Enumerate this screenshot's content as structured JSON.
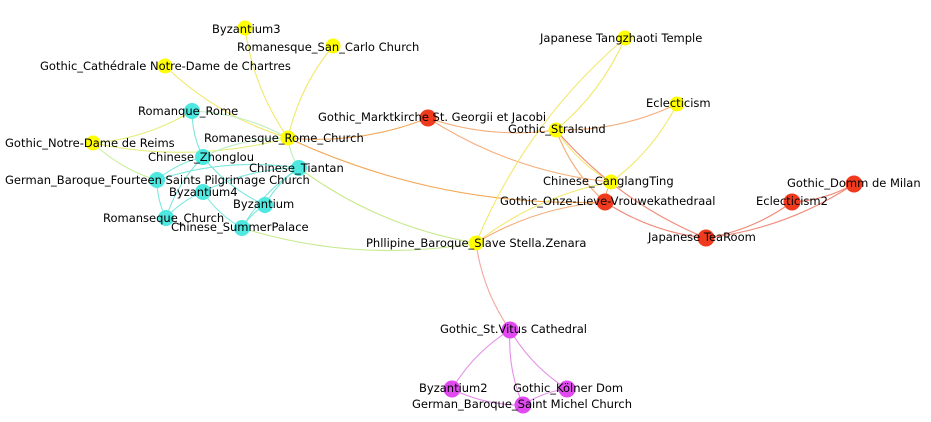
{
  "graph": {
    "colors": {
      "yellow": "#ffff00",
      "cyan": "#4de8e0",
      "red": "#f03a1e",
      "magenta": "#e14af0"
    },
    "nodes": [
      {
        "id": "byzantium3",
        "label": "Byzantium3",
        "group": "yellow"
      },
      {
        "id": "romanesque_san_carlo",
        "label": "Romanesque_San_Carlo Church",
        "group": "yellow"
      },
      {
        "id": "gothic_chartres",
        "label": "Gothic_Cathédrale Notre-Dame de Chartres",
        "group": "yellow"
      },
      {
        "id": "romanque_rome",
        "label": "Romanque_Rome",
        "group": "cyan"
      },
      {
        "id": "gothic_reims",
        "label": "Gothic_Notre-Dame de Reims",
        "group": "yellow"
      },
      {
        "id": "romanesque_rome_church",
        "label": "Romanesque_Rome_Church",
        "group": "yellow"
      },
      {
        "id": "chinese_zhonglou",
        "label": "Chinese_Zhonglou",
        "group": "cyan"
      },
      {
        "id": "chinese_tiantan",
        "label": "Chinese_Tiantan",
        "group": "cyan"
      },
      {
        "id": "german_baroque_fourteen",
        "label": "German_Baroque_Fourteen Saints Pilgrimage Church",
        "group": "cyan"
      },
      {
        "id": "byzantium4",
        "label": "Byzantium4",
        "group": "cyan"
      },
      {
        "id": "byzantium",
        "label": "Byzantium",
        "group": "cyan"
      },
      {
        "id": "romanseque_church",
        "label": "Romanseque_Church",
        "group": "cyan"
      },
      {
        "id": "chinese_summerpalace",
        "label": "Chinese_SummerPalace",
        "group": "cyan"
      },
      {
        "id": "gothic_marktkirche",
        "label": "Gothic_Marktkirche St. Georgii et Jacobi",
        "group": "red"
      },
      {
        "id": "japanese_tangzhaoti",
        "label": "Japanese Tangzhaoti Temple",
        "group": "yellow"
      },
      {
        "id": "eclecticism",
        "label": "Eclecticism",
        "group": "yellow"
      },
      {
        "id": "gothic_stralsund",
        "label": "Gothic_Stralsund",
        "group": "yellow"
      },
      {
        "id": "chinese_canglangting",
        "label": "Chinese_CanglangTing",
        "group": "yellow"
      },
      {
        "id": "gothic_onze_lieve",
        "label": "Gothic_Onze-Lieve-Vrouwekathedraal",
        "group": "red"
      },
      {
        "id": "gothic_domm_milan",
        "label": "Gothic_Domm de Milan",
        "group": "red"
      },
      {
        "id": "eclecticism2",
        "label": "Eclecticism2",
        "group": "red"
      },
      {
        "id": "japanese_tearoom",
        "label": "Japanese TeaRoom",
        "group": "red"
      },
      {
        "id": "philippine_baroque",
        "label": "Phllipine_Baroque_Slave Stella.Zenara",
        "group": "yellow"
      },
      {
        "id": "gothic_st_vitus",
        "label": "Gothic_St.Vitus Cathedral",
        "group": "magenta"
      },
      {
        "id": "byzantium2",
        "label": "Byzantium2",
        "group": "magenta"
      },
      {
        "id": "gothic_kolner_dom",
        "label": "Gothic_Kölner Dom",
        "group": "magenta"
      },
      {
        "id": "german_baroque_saint_michel",
        "label": "German_Baroque_Saint Michel Church",
        "group": "magenta"
      }
    ],
    "edges": [
      {
        "source": "byzantium3",
        "target": "romanesque_rome_church",
        "color": "#f2e86a"
      },
      {
        "source": "romanesque_san_carlo",
        "target": "romanesque_rome_church",
        "color": "#f2e86a"
      },
      {
        "source": "gothic_chartres",
        "target": "romanesque_rome_church",
        "color": "#f2e86a"
      },
      {
        "source": "gothic_reims",
        "target": "romanesque_rome_church",
        "color": "#e6ef7a"
      },
      {
        "source": "gothic_reims",
        "target": "romanque_rome",
        "color": "#e6ef7a"
      },
      {
        "source": "gothic_reims",
        "target": "german_baroque_fourteen",
        "color": "#c9efa0"
      },
      {
        "source": "romanesque_rome_church",
        "target": "romanque_rome",
        "color": "#bdeec0"
      },
      {
        "source": "romanesque_rome_church",
        "target": "chinese_zhonglou",
        "color": "#bdeec0"
      },
      {
        "source": "romanesque_rome_church",
        "target": "chinese_tiantan",
        "color": "#bdeec0"
      },
      {
        "source": "romanesque_rome_church",
        "target": "gothic_marktkirche",
        "color": "#f0a857"
      },
      {
        "source": "romanesque_rome_church",
        "target": "gothic_onze_lieve",
        "color": "#f0a857"
      },
      {
        "source": "chinese_tiantan",
        "target": "byzantium",
        "color": "#7ee8de"
      },
      {
        "source": "chinese_tiantan",
        "target": "byzantium4",
        "color": "#7ee8de"
      },
      {
        "source": "chinese_tiantan",
        "target": "german_baroque_fourteen",
        "color": "#7ee8de"
      },
      {
        "source": "chinese_tiantan",
        "target": "chinese_summerpalace",
        "color": "#7ee8de"
      },
      {
        "source": "chinese_tiantan",
        "target": "philippine_baroque",
        "color": "#c8ea90"
      },
      {
        "source": "chinese_zhonglou",
        "target": "german_baroque_fourteen",
        "color": "#7ee8de"
      },
      {
        "source": "chinese_zhonglou",
        "target": "romanseque_church",
        "color": "#7ee8de"
      },
      {
        "source": "chinese_zhonglou",
        "target": "byzantium",
        "color": "#7ee8de"
      },
      {
        "source": "german_baroque_fourteen",
        "target": "romanseque_church",
        "color": "#7ee8de"
      },
      {
        "source": "byzantium4",
        "target": "romanseque_church",
        "color": "#7ee8de"
      },
      {
        "source": "byzantium4",
        "target": "chinese_summerpalace",
        "color": "#7ee8de"
      },
      {
        "source": "byzantium",
        "target": "chinese_summerpalace",
        "color": "#7ee8de"
      },
      {
        "source": "romanque_rome",
        "target": "chinese_zhonglou",
        "color": "#7ee8de"
      },
      {
        "source": "chinese_summerpalace",
        "target": "philippine_baroque",
        "color": "#c8ea90"
      },
      {
        "source": "gothic_marktkirche",
        "target": "gothic_stralsund",
        "color": "#f5ad7a"
      },
      {
        "source": "gothic_marktkirche",
        "target": "chinese_canglangting",
        "color": "#f5ad7a"
      },
      {
        "source": "gothic_stralsund",
        "target": "japanese_tangzhaoti",
        "color": "#f2e86a"
      },
      {
        "source": "gothic_stralsund",
        "target": "eclecticism",
        "color": "#f5ad7a"
      },
      {
        "source": "gothic_stralsund",
        "target": "chinese_canglangting",
        "color": "#f2e86a"
      },
      {
        "source": "gothic_stralsund",
        "target": "japanese_tearoom",
        "color": "#f08a78"
      },
      {
        "source": "gothic_stralsund",
        "target": "gothic_onze_lieve",
        "color": "#f5ad7a"
      },
      {
        "source": "chinese_canglangting",
        "target": "eclecticism",
        "color": "#f2e86a"
      },
      {
        "source": "chinese_canglangting",
        "target": "philippine_baroque",
        "color": "#f2e86a"
      },
      {
        "source": "chinese_canglangting",
        "target": "gothic_onze_lieve",
        "color": "#f5ad7a"
      },
      {
        "source": "japanese_tangzhaoti",
        "target": "philippine_baroque",
        "color": "#f2e86a"
      },
      {
        "source": "gothic_onze_lieve",
        "target": "philippine_baroque",
        "color": "#f5ad7a"
      },
      {
        "source": "gothic_onze_lieve",
        "target": "japanese_tearoom",
        "color": "#f08a78"
      },
      {
        "source": "japanese_tearoom",
        "target": "eclecticism2",
        "color": "#f08a78"
      },
      {
        "source": "japanese_tearoom",
        "target": "gothic_domm_milan",
        "color": "#f08a78"
      },
      {
        "source": "eclecticism2",
        "target": "gothic_domm_milan",
        "color": "#f08a78"
      },
      {
        "source": "philippine_baroque",
        "target": "gothic_st_vitus",
        "color": "#f4a6a0"
      },
      {
        "source": "gothic_st_vitus",
        "target": "byzantium2",
        "color": "#e58ee8"
      },
      {
        "source": "gothic_st_vitus",
        "target": "gothic_kolner_dom",
        "color": "#e58ee8"
      },
      {
        "source": "gothic_st_vitus",
        "target": "german_baroque_saint_michel",
        "color": "#e58ee8"
      },
      {
        "source": "byzantium2",
        "target": "german_baroque_saint_michel",
        "color": "#e58ee8"
      },
      {
        "source": "gothic_kolner_dom",
        "target": "german_baroque_saint_michel",
        "color": "#e58ee8"
      }
    ]
  }
}
